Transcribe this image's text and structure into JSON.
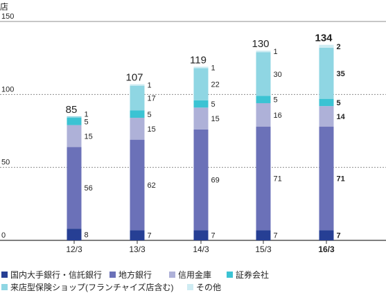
{
  "chart_data": {
    "type": "bar",
    "stacked": true,
    "unit": "店",
    "categories": [
      "12/3",
      "13/3",
      "14/3",
      "15/3",
      "16/3"
    ],
    "highlight_category": "16/3",
    "ylim": [
      0,
      150
    ],
    "yticks": [
      0,
      50,
      100,
      150
    ],
    "grid": "dashed horizontal at 50 and 100",
    "totals": [
      85,
      107,
      119,
      130,
      134
    ],
    "series": [
      {
        "name": "国内大手銀行・信託銀行",
        "color": "#263f94",
        "values": [
          8,
          7,
          7,
          7,
          7
        ]
      },
      {
        "name": "地方銀行",
        "color": "#6b71b8",
        "values": [
          56,
          62,
          69,
          71,
          71
        ]
      },
      {
        "name": "信用金庫",
        "color": "#aeb1d8",
        "values": [
          15,
          15,
          15,
          16,
          14
        ]
      },
      {
        "name": "証券会社",
        "color": "#3bc3d3",
        "values": [
          5,
          5,
          5,
          5,
          5
        ]
      },
      {
        "name": "来店型保険ショップ(フランチャイズ店含む)",
        "color": "#8fd6e3",
        "values": [
          1,
          17,
          22,
          30,
          35
        ]
      },
      {
        "name": "その他",
        "color": "#cfecf3",
        "values": [
          0,
          1,
          1,
          1,
          2
        ]
      }
    ],
    "segment_labels": [
      [
        "8",
        "56",
        "15",
        "5",
        "1",
        ""
      ],
      [
        "7",
        "62",
        "15",
        "5",
        "17",
        "1"
      ],
      [
        "7",
        "69",
        "15",
        "5",
        "22",
        "1"
      ],
      [
        "7",
        "71",
        "16",
        "5",
        "30",
        "1"
      ],
      [
        "7",
        "71",
        "14",
        "5",
        "35",
        "2"
      ]
    ],
    "legend_position": "bottom"
  }
}
